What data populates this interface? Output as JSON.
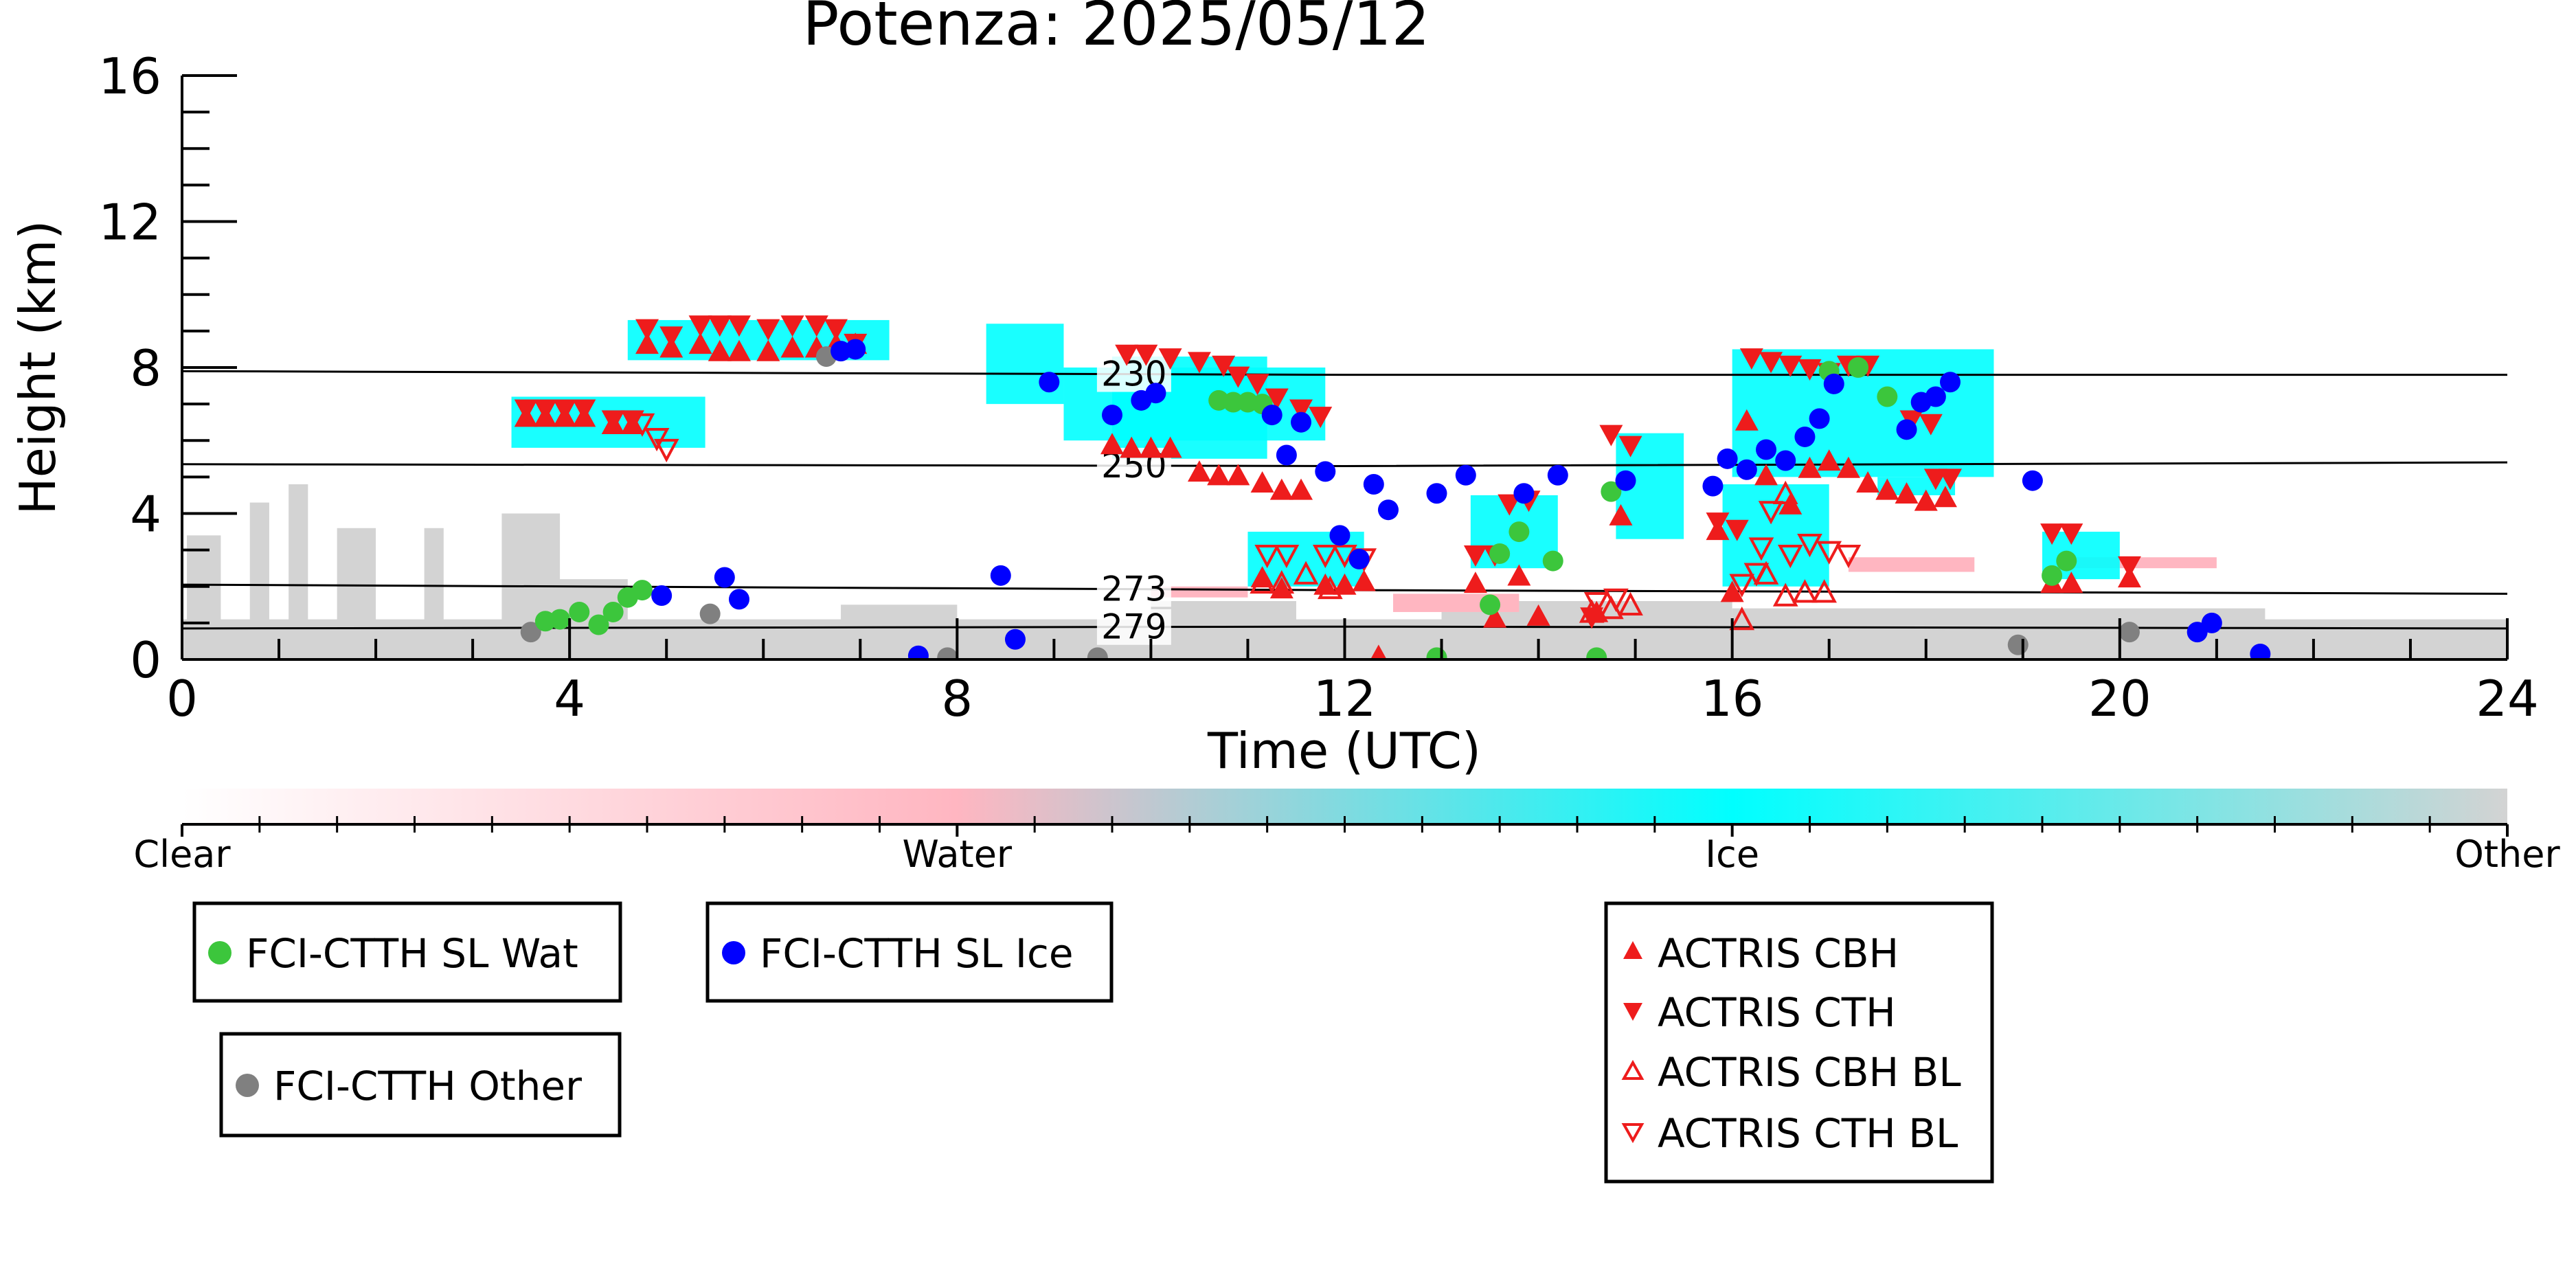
{
  "chart_data": {
    "type": "scatter",
    "title": "Potenza: 2025/05/12",
    "xlabel": "Time (UTC)",
    "ylabel": "Height (km)",
    "xlim": [
      0,
      24
    ],
    "ylim": [
      0,
      16
    ],
    "x_ticks": [
      "0",
      "4",
      "8",
      "12",
      "16",
      "20",
      "24"
    ],
    "y_ticks": [
      "0",
      "4",
      "8",
      "12",
      "16"
    ],
    "grid": false,
    "isotherms": [
      {
        "label": "230",
        "x_label": 9.5,
        "points": [
          [
            0,
            7.9
          ],
          [
            12,
            7.8
          ],
          [
            24,
            7.8
          ]
        ]
      },
      {
        "label": "250",
        "x_label": 9.5,
        "points": [
          [
            0,
            5.35
          ],
          [
            12,
            5.3
          ],
          [
            24,
            5.4
          ]
        ]
      },
      {
        "label": "273",
        "x_label": 9.5,
        "points": [
          [
            0,
            2.05
          ],
          [
            12,
            1.9
          ],
          [
            24,
            1.8
          ]
        ]
      },
      {
        "label": "279",
        "x_label": 9.5,
        "points": [
          [
            0,
            0.85
          ],
          [
            12,
            0.9
          ],
          [
            24,
            0.85
          ]
        ]
      }
    ],
    "classification_colorbar": {
      "labels": [
        "Clear",
        "Water",
        "Ice",
        "Other"
      ],
      "colors": [
        "#ffffff",
        "#ffb6c1",
        "#00ffff",
        "#d3d3d3"
      ]
    },
    "background_layers": {
      "other": [
        [
          0,
          0,
          24,
          1.1
        ],
        [
          0.05,
          0,
          0.4,
          3.4
        ],
        [
          0.7,
          0,
          0.9,
          4.3
        ],
        [
          1.1,
          0,
          1.3,
          4.8
        ],
        [
          1.6,
          0,
          2.0,
          3.6
        ],
        [
          2.5,
          0,
          2.7,
          3.6
        ],
        [
          3.3,
          0,
          3.9,
          4.0
        ],
        [
          3.5,
          0,
          4.6,
          2.2
        ],
        [
          6.8,
          0,
          8.0,
          1.5
        ],
        [
          10.0,
          0,
          11.5,
          1.6
        ],
        [
          13.0,
          0,
          16.0,
          1.6
        ],
        [
          16.0,
          0,
          21.5,
          1.4
        ]
      ],
      "water": [
        [
          10.0,
          1.7,
          11.0,
          2.0
        ],
        [
          12.5,
          1.3,
          13.8,
          1.8
        ],
        [
          17.2,
          2.4,
          18.5,
          2.8
        ],
        [
          19.5,
          2.5,
          21.0,
          2.8
        ]
      ],
      "ice": [
        [
          3.4,
          5.8,
          5.4,
          7.2
        ],
        [
          4.6,
          8.2,
          7.3,
          9.3
        ],
        [
          9.1,
          6.0,
          11.8,
          8.0
        ],
        [
          9.6,
          5.5,
          11.2,
          8.3
        ],
        [
          8.3,
          7.0,
          9.1,
          9.2
        ],
        [
          11.0,
          2.0,
          12.2,
          3.5
        ],
        [
          13.3,
          2.5,
          14.2,
          4.5
        ],
        [
          14.8,
          3.3,
          15.5,
          6.2
        ],
        [
          15.9,
          2.0,
          17.0,
          4.8
        ],
        [
          16.0,
          5.0,
          18.7,
          8.5
        ],
        [
          17.5,
          4.5,
          18.3,
          5.0
        ],
        [
          19.2,
          2.2,
          20.0,
          3.5
        ]
      ]
    },
    "series": [
      {
        "name": "FCI-CTTH SL Wat",
        "color": "#3cc63c",
        "marker": "circle",
        "points": [
          [
            3.75,
            1.05
          ],
          [
            3.9,
            1.1
          ],
          [
            4.1,
            1.3
          ],
          [
            4.3,
            0.95
          ],
          [
            4.45,
            1.3
          ],
          [
            4.6,
            1.7
          ],
          [
            4.75,
            1.9
          ],
          [
            10.7,
            7.1
          ],
          [
            10.85,
            7.05
          ],
          [
            11.0,
            7.05
          ],
          [
            11.15,
            7.0
          ],
          [
            17.0,
            7.9
          ],
          [
            17.3,
            8.0
          ],
          [
            17.6,
            7.2
          ],
          [
            13.5,
            1.5
          ],
          [
            13.6,
            2.9
          ],
          [
            13.8,
            3.5
          ],
          [
            14.15,
            2.7
          ],
          [
            14.6,
            0.05
          ],
          [
            14.75,
            4.6
          ],
          [
            19.3,
            2.3
          ],
          [
            19.45,
            2.7
          ],
          [
            12.95,
            0.05
          ]
        ]
      },
      {
        "name": "FCI-CTTH SL Ice",
        "color": "#0000ff",
        "marker": "circle",
        "points": [
          [
            4.95,
            1.75
          ],
          [
            5.6,
            2.25
          ],
          [
            5.75,
            1.65
          ],
          [
            6.8,
            8.45
          ],
          [
            6.95,
            8.5
          ],
          [
            7.6,
            0.1
          ],
          [
            8.45,
            2.3
          ],
          [
            8.6,
            0.55
          ],
          [
            8.95,
            7.6
          ],
          [
            9.6,
            6.7
          ],
          [
            9.9,
            7.1
          ],
          [
            10.05,
            7.3
          ],
          [
            11.25,
            6.7
          ],
          [
            11.4,
            5.6
          ],
          [
            11.55,
            6.5
          ],
          [
            11.8,
            5.15
          ],
          [
            11.95,
            3.4
          ],
          [
            12.15,
            2.75
          ],
          [
            12.3,
            4.8
          ],
          [
            12.45,
            4.1
          ],
          [
            12.95,
            4.55
          ],
          [
            13.25,
            5.05
          ],
          [
            13.85,
            4.55
          ],
          [
            14.2,
            5.05
          ],
          [
            14.9,
            4.9
          ],
          [
            15.8,
            4.75
          ],
          [
            15.95,
            5.5
          ],
          [
            16.15,
            5.2
          ],
          [
            16.35,
            5.75
          ],
          [
            16.55,
            5.45
          ],
          [
            16.75,
            6.1
          ],
          [
            16.9,
            6.6
          ],
          [
            17.05,
            7.55
          ],
          [
            17.8,
            6.3
          ],
          [
            17.95,
            7.05
          ],
          [
            18.1,
            7.2
          ],
          [
            18.25,
            7.6
          ],
          [
            19.1,
            4.9
          ],
          [
            20.8,
            0.75
          ],
          [
            20.95,
            1.0
          ],
          [
            21.45,
            0.15
          ]
        ]
      },
      {
        "name": "FCI-CTTH Other",
        "color": "#808080",
        "marker": "circle",
        "points": [
          [
            3.6,
            0.75
          ],
          [
            5.45,
            1.25
          ],
          [
            6.65,
            8.3
          ],
          [
            7.9,
            0.05
          ],
          [
            9.45,
            0.05
          ],
          [
            18.95,
            0.4
          ],
          [
            20.1,
            0.75
          ]
        ]
      },
      {
        "name": "ACTRIS CBH",
        "color": "#ee1c1c",
        "marker": "triangle-up",
        "points": [
          [
            3.55,
            6.6
          ],
          [
            3.75,
            6.6
          ],
          [
            3.95,
            6.6
          ],
          [
            4.15,
            6.6
          ],
          [
            4.45,
            6.4
          ],
          [
            4.65,
            6.4
          ],
          [
            4.8,
            8.6
          ],
          [
            5.05,
            8.5
          ],
          [
            5.35,
            8.6
          ],
          [
            5.55,
            8.4
          ],
          [
            5.75,
            8.4
          ],
          [
            6.05,
            8.4
          ],
          [
            6.3,
            8.5
          ],
          [
            6.55,
            8.5
          ],
          [
            6.75,
            8.6
          ],
          [
            6.95,
            8.6
          ],
          [
            9.6,
            5.85
          ],
          [
            9.8,
            5.75
          ],
          [
            10.0,
            5.75
          ],
          [
            10.2,
            5.75
          ],
          [
            10.5,
            5.1
          ],
          [
            10.7,
            5.0
          ],
          [
            10.9,
            5.0
          ],
          [
            11.15,
            4.8
          ],
          [
            11.35,
            4.6
          ],
          [
            11.55,
            4.6
          ],
          [
            11.15,
            2.2
          ],
          [
            11.35,
            1.9
          ],
          [
            11.8,
            2.0
          ],
          [
            12.0,
            2.0
          ],
          [
            12.2,
            2.1
          ],
          [
            12.35,
            0.05
          ],
          [
            13.35,
            2.05
          ],
          [
            13.55,
            1.1
          ],
          [
            13.8,
            2.25
          ],
          [
            14.0,
            1.15
          ],
          [
            14.6,
            1.25
          ],
          [
            14.85,
            3.9
          ],
          [
            15.85,
            3.5
          ],
          [
            16.0,
            1.8
          ],
          [
            16.15,
            6.5
          ],
          [
            16.35,
            5.0
          ],
          [
            16.6,
            4.2
          ],
          [
            16.8,
            5.2
          ],
          [
            17.0,
            5.4
          ],
          [
            17.2,
            5.2
          ],
          [
            17.4,
            4.8
          ],
          [
            17.6,
            4.6
          ],
          [
            17.8,
            4.5
          ],
          [
            18.0,
            4.3
          ],
          [
            18.2,
            4.4
          ],
          [
            19.3,
            2.05
          ],
          [
            19.5,
            2.05
          ],
          [
            20.1,
            2.2
          ]
        ]
      },
      {
        "name": "ACTRIS CTH",
        "color": "#ee1c1c",
        "marker": "triangle-down",
        "points": [
          [
            3.55,
            6.9
          ],
          [
            3.75,
            6.9
          ],
          [
            3.95,
            6.9
          ],
          [
            4.15,
            6.9
          ],
          [
            4.45,
            6.6
          ],
          [
            4.65,
            6.6
          ],
          [
            4.8,
            9.1
          ],
          [
            5.05,
            8.9
          ],
          [
            5.35,
            9.2
          ],
          [
            5.55,
            9.2
          ],
          [
            5.75,
            9.2
          ],
          [
            6.05,
            9.1
          ],
          [
            6.3,
            9.2
          ],
          [
            6.55,
            9.2
          ],
          [
            6.75,
            9.1
          ],
          [
            6.95,
            8.7
          ],
          [
            9.75,
            8.4
          ],
          [
            9.95,
            8.4
          ],
          [
            10.2,
            8.3
          ],
          [
            10.5,
            8.2
          ],
          [
            10.75,
            8.1
          ],
          [
            10.9,
            7.8
          ],
          [
            11.1,
            7.6
          ],
          [
            11.3,
            7.2
          ],
          [
            11.55,
            6.9
          ],
          [
            11.75,
            6.7
          ],
          [
            13.35,
            2.9
          ],
          [
            13.55,
            2.9
          ],
          [
            13.7,
            4.3
          ],
          [
            13.9,
            4.4
          ],
          [
            14.55,
            1.2
          ],
          [
            14.75,
            6.2
          ],
          [
            14.95,
            5.9
          ],
          [
            15.85,
            3.8
          ],
          [
            16.05,
            3.6
          ],
          [
            16.2,
            8.3
          ],
          [
            16.4,
            8.2
          ],
          [
            16.6,
            8.1
          ],
          [
            16.8,
            8.0
          ],
          [
            17.0,
            7.9
          ],
          [
            17.2,
            8.1
          ],
          [
            17.4,
            8.1
          ],
          [
            17.85,
            6.6
          ],
          [
            18.05,
            6.5
          ],
          [
            18.1,
            5.0
          ],
          [
            18.25,
            5.0
          ],
          [
            19.3,
            3.5
          ],
          [
            19.5,
            3.5
          ],
          [
            20.1,
            2.6
          ]
        ]
      },
      {
        "name": "ACTRIS CBH BL",
        "color": "#ee1c1c",
        "marker": "triangle-up-open",
        "points": [
          [
            11.15,
            2.05
          ],
          [
            11.35,
            2.05
          ],
          [
            11.6,
            2.3
          ],
          [
            11.85,
            1.9
          ],
          [
            14.55,
            1.25
          ],
          [
            14.75,
            1.35
          ],
          [
            14.95,
            1.45
          ],
          [
            16.1,
            1.05
          ],
          [
            16.35,
            2.3
          ],
          [
            16.55,
            1.7
          ],
          [
            16.75,
            1.8
          ],
          [
            16.95,
            1.8
          ],
          [
            16.55,
            4.5
          ]
        ]
      },
      {
        "name": "ACTRIS CTH BL",
        "color": "#ee1c1c",
        "marker": "triangle-down-open",
        "points": [
          [
            4.75,
            6.5
          ],
          [
            4.9,
            6.1
          ],
          [
            5.0,
            5.8
          ],
          [
            11.2,
            2.9
          ],
          [
            11.4,
            2.9
          ],
          [
            11.8,
            2.9
          ],
          [
            12.0,
            2.9
          ],
          [
            12.2,
            2.8
          ],
          [
            14.6,
            1.6
          ],
          [
            14.8,
            1.7
          ],
          [
            16.1,
            2.1
          ],
          [
            16.3,
            3.1
          ],
          [
            16.4,
            4.1
          ],
          [
            16.6,
            2.9
          ],
          [
            16.8,
            3.2
          ],
          [
            17.0,
            3.0
          ],
          [
            17.2,
            2.9
          ],
          [
            16.25,
            2.4
          ]
        ]
      }
    ],
    "legends": [
      {
        "entries": [
          "FCI-CTTH SL Wat"
        ]
      },
      {
        "entries": [
          "FCI-CTTH SL Ice"
        ]
      },
      {
        "entries": [
          "FCI-CTTH Other"
        ]
      },
      {
        "entries": [
          "ACTRIS CBH",
          "ACTRIS CTH",
          "ACTRIS CBH BL",
          "ACTRIS CTH BL"
        ]
      }
    ]
  }
}
